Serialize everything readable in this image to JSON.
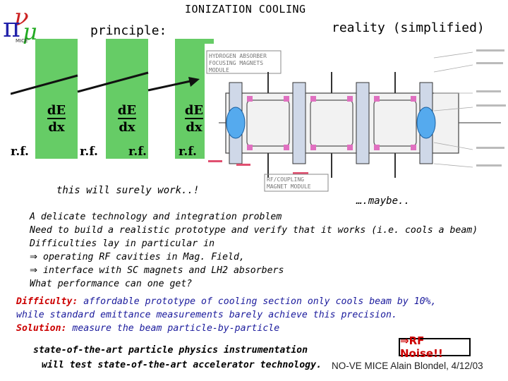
{
  "title": "IONIZATION   COOLING",
  "logo": {
    "label": "MICE"
  },
  "principle": {
    "label": "principle:",
    "rf": [
      "r.f.",
      "r.f.",
      "r.f.",
      "r.f."
    ],
    "dedx": [
      "dE",
      "dx"
    ],
    "colors": {
      "absorber": "#66cc66",
      "arrow": "#111111"
    }
  },
  "reality": {
    "label": "reality (simplified)",
    "callouts": [
      "HYDROGEN ABSORBER",
      "FOCUSING MAGNETS",
      "MODULE",
      "RF/COUPLING",
      "MAGNET MODULE"
    ]
  },
  "comments": {
    "left": "this will surely work..!",
    "right": "….maybe.."
  },
  "body": {
    "lines": [
      "A delicate technology and integration problem",
      "Need to build a realistic prototype and verify that it works (i.e. cools a beam)",
      "Difficulties lay in particular in"
    ],
    "bullets": [
      "operating RF cavities in Mag. Field,",
      "interface with SC magnets and LH2 absorbers"
    ],
    "bullet_symbol": "⇒",
    "question": "What performance can one get?"
  },
  "difficulty": {
    "label": "Difficulty:",
    "text1": " affordable prototype of cooling section only cools beam by 10%,",
    "line2": "while standard emittance measurements barely achieve this precision.",
    "solution_label": "Solution:",
    "solution_text": " measure the beam particle-by-particle"
  },
  "state": {
    "line1": "state-of-the-art particle physics instrumentation",
    "line2": "will test state-of-the-art accelerator technology."
  },
  "rf_noise": "⇒RF Noise!!",
  "footer": "NO-VE  MICE  Alain Blondel, 4/12/03"
}
